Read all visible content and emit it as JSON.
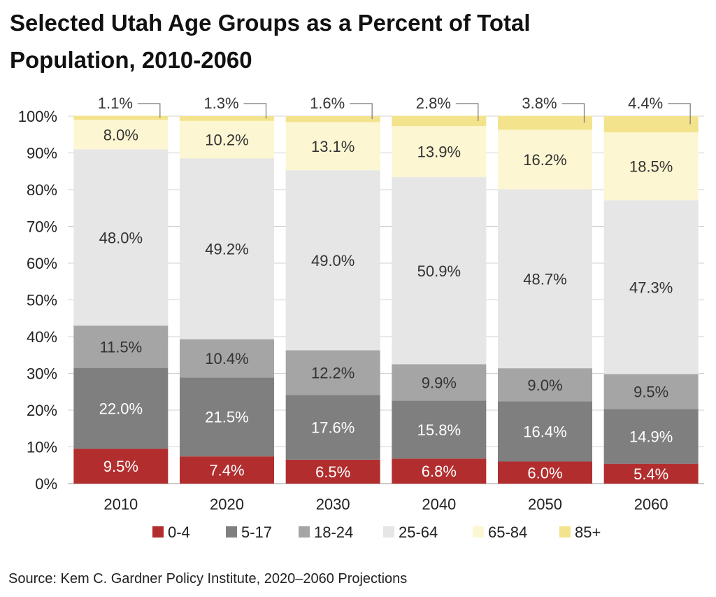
{
  "title": "Selected Utah Age Groups as a Percent of Total Population, 2010-2060",
  "source": "Source: Kem C. Gardner Policy Institute, 2020–2060 Projections",
  "chart_data": {
    "type": "bar",
    "stacked": true,
    "categories": [
      "2010",
      "2020",
      "2030",
      "2040",
      "2050",
      "2060"
    ],
    "series": [
      {
        "name": "0-4",
        "color": "#b22e2e",
        "values": [
          9.5,
          7.4,
          6.5,
          6.8,
          6.0,
          5.4
        ],
        "labels": [
          "9.5%",
          "7.4%",
          "6.5%",
          "6.8%",
          "6.0%",
          "5.4%"
        ]
      },
      {
        "name": "5-17",
        "color": "#7f7f7f",
        "values": [
          22.0,
          21.5,
          17.6,
          15.8,
          16.4,
          14.9
        ],
        "labels": [
          "22.0%",
          "21.5%",
          "17.6%",
          "15.8%",
          "16.4%",
          "14.9%"
        ]
      },
      {
        "name": "18-24",
        "color": "#a5a5a5",
        "values": [
          11.5,
          10.4,
          12.2,
          9.9,
          9.0,
          9.5
        ],
        "labels": [
          "11.5%",
          "10.4%",
          "12.2%",
          "9.9%",
          "9.0%",
          "9.5%"
        ]
      },
      {
        "name": "25-64",
        "color": "#e6e6e6",
        "values": [
          48.0,
          49.2,
          49.0,
          50.9,
          48.7,
          47.3
        ],
        "labels": [
          "48.0%",
          "49.2%",
          "49.0%",
          "50.9%",
          "48.7%",
          "47.3%"
        ]
      },
      {
        "name": "65-84",
        "color": "#fdf6d2",
        "values": [
          8.0,
          10.2,
          13.1,
          13.9,
          16.2,
          18.5
        ],
        "labels": [
          "8.0%",
          "10.2%",
          "13.1%",
          "13.9%",
          "16.2%",
          "18.5%"
        ]
      },
      {
        "name": "85+",
        "color": "#f3e38c",
        "values": [
          1.1,
          1.3,
          1.6,
          2.8,
          3.8,
          4.4
        ],
        "labels": [
          "1.1%",
          "1.3%",
          "1.6%",
          "2.8%",
          "3.8%",
          "4.4%"
        ]
      }
    ],
    "y_ticks": [
      "0%",
      "10%",
      "20%",
      "30%",
      "40%",
      "50%",
      "60%",
      "70%",
      "80%",
      "90%",
      "100%"
    ],
    "ylim": [
      0,
      100
    ],
    "grid": true,
    "legend_position": "bottom",
    "xlabel": "",
    "ylabel": ""
  }
}
